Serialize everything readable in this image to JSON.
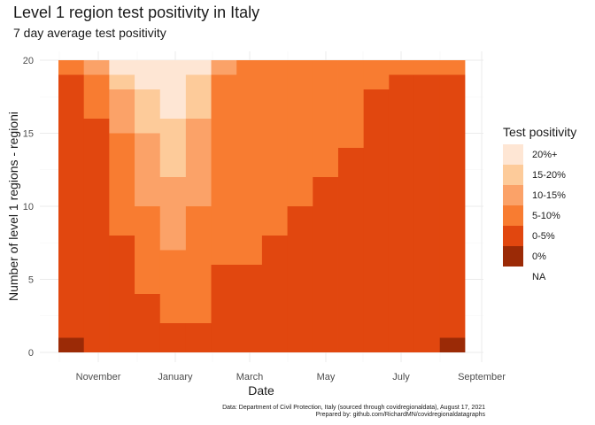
{
  "title": "Level 1 region test positivity in Italy",
  "subtitle": "7 day average test positivity",
  "caption_line1": "Data: Department of Civil Protection, Italy (sourced through covidregionaldata), August 17, 2021",
  "caption_line2": "Prepared by: github.com/RichardMN/covidregionaldatagraphs",
  "chart_data": {
    "type": "area",
    "title": "Level 1 region test positivity in Italy",
    "subtitle": "7 day average test positivity",
    "xlabel": "Date",
    "ylabel": "Number of level 1 regions - regioni",
    "x_ticks": [
      "November",
      "January",
      "March",
      "May",
      "July",
      "September"
    ],
    "y_ticks": [
      "0",
      "5",
      "10",
      "15",
      "20"
    ],
    "ylim": [
      0,
      20
    ],
    "x_range": [
      "2020-10-01",
      "2021-08-17"
    ],
    "grid": true,
    "legend_position": "right",
    "legend_title": "Test positivity",
    "categories": [
      "0%",
      "0-5%",
      "5-10%",
      "10-15%",
      "15-20%",
      "20%+",
      "NA"
    ],
    "colors": {
      "0%": "#9b2a06",
      "0-5%": "#e1470f",
      "5-10%": "#f87c31",
      "10-15%": "#fba268",
      "15-20%": "#fdcb9a",
      "20%+": "#fee6d4",
      "NA": "#ffffff"
    },
    "legend_entries": [
      "20%+",
      "15-20%",
      "10-15%",
      "5-10%",
      "0-5%",
      "0%",
      "NA"
    ],
    "series": [
      {
        "name": "0%",
        "values": [
          1,
          0,
          0,
          0,
          0,
          0,
          0,
          0,
          0,
          0,
          0,
          0,
          0,
          0,
          0,
          1
        ]
      },
      {
        "name": "0-5%",
        "values": [
          18,
          16,
          8,
          4,
          2,
          2,
          6,
          6,
          8,
          10,
          12,
          14,
          18,
          19,
          19,
          18
        ]
      },
      {
        "name": "5-10%",
        "values": [
          1,
          3,
          7,
          6,
          5,
          8,
          13,
          14,
          12,
          10,
          8,
          6,
          2,
          1,
          1,
          1
        ]
      },
      {
        "name": "10-15%",
        "values": [
          0,
          1,
          3,
          5,
          5,
          6,
          1,
          0,
          0,
          0,
          0,
          0,
          0,
          0,
          0,
          0
        ]
      },
      {
        "name": "15-20%",
        "values": [
          0,
          0,
          1,
          3,
          4,
          3,
          0,
          0,
          0,
          0,
          0,
          0,
          0,
          0,
          0,
          0
        ]
      },
      {
        "name": "20%+",
        "values": [
          0,
          0,
          1,
          2,
          4,
          1,
          0,
          0,
          0,
          0,
          0,
          0,
          0,
          0,
          0,
          0
        ]
      }
    ],
    "x": [
      "2020-10-01",
      "2020-10-22",
      "2020-11-12",
      "2020-12-03",
      "2020-12-24",
      "2021-01-14",
      "2021-02-04",
      "2021-02-25",
      "2021-03-18",
      "2021-04-08",
      "2021-04-29",
      "2021-05-20",
      "2021-06-10",
      "2021-07-01",
      "2021-07-22",
      "2021-08-12"
    ]
  }
}
